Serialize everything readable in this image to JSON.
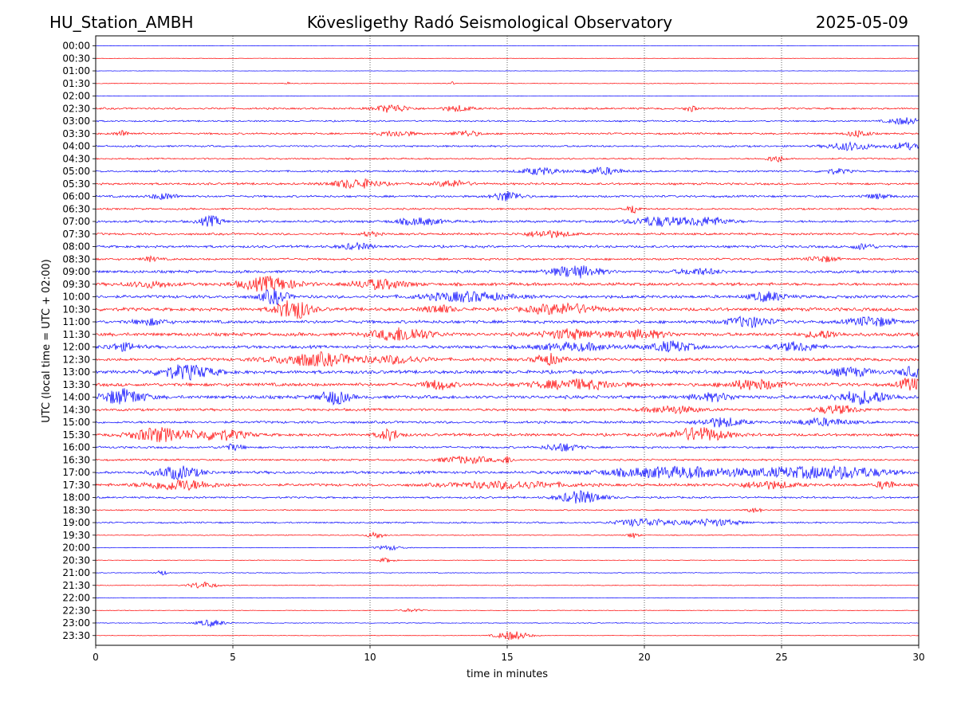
{
  "header": {
    "station": "HU_Station_AMBH",
    "observatory": "Kövesligethy Radó Seismological Observatory",
    "date": "2025-05-09"
  },
  "chart_data": {
    "type": "line",
    "title": "Kövesligethy Radó Seismological Observatory",
    "xlabel": "time in minutes",
    "ylabel": "UTC (local time = UTC + 02:00)",
    "xlim": [
      0,
      30
    ],
    "x_ticks": [
      "0",
      "5",
      "10",
      "15",
      "20",
      "25",
      "30"
    ],
    "vertical_gridlines_at": [
      5,
      10,
      15,
      20,
      25
    ],
    "grid_style": "dotted",
    "row_labels": [
      "00:00",
      "00:30",
      "01:00",
      "01:30",
      "02:00",
      "02:30",
      "03:00",
      "03:30",
      "04:00",
      "04:30",
      "05:00",
      "05:30",
      "06:00",
      "06:30",
      "07:00",
      "07:30",
      "08:00",
      "08:30",
      "09:00",
      "09:30",
      "10:00",
      "10:30",
      "11:00",
      "11:30",
      "12:00",
      "12:30",
      "13:00",
      "13:30",
      "14:00",
      "14:30",
      "15:00",
      "15:30",
      "16:00",
      "16:30",
      "17:00",
      "17:30",
      "18:00",
      "18:30",
      "19:00",
      "19:30",
      "20:00",
      "20:30",
      "21:00",
      "21:30",
      "22:00",
      "22:30",
      "23:00",
      "23:30"
    ],
    "trace_colors": [
      "#0000ff",
      "#ff0000"
    ],
    "trace_amplitude": [
      0.05,
      0.06,
      0.06,
      0.1,
      0.08,
      0.3,
      0.25,
      0.3,
      0.3,
      0.25,
      0.3,
      0.35,
      0.35,
      0.3,
      0.4,
      0.35,
      0.4,
      0.35,
      0.45,
      0.5,
      0.5,
      0.55,
      0.5,
      0.55,
      0.5,
      0.5,
      0.55,
      0.55,
      0.55,
      0.4,
      0.4,
      0.45,
      0.35,
      0.3,
      0.45,
      0.45,
      0.3,
      0.2,
      0.25,
      0.15,
      0.1,
      0.1,
      0.12,
      0.12,
      0.1,
      0.1,
      0.12,
      0.08
    ],
    "bursts": [
      [],
      [],
      [],
      [
        [
          7,
          0.08,
          0.3
        ],
        [
          13,
          0.08,
          0.3
        ]
      ],
      [],
      [
        [
          10.8,
          0.6,
          0.7
        ],
        [
          13.2,
          0.5,
          0.5
        ],
        [
          21.7,
          0.2,
          0.5
        ]
      ],
      [
        [
          29.5,
          0.6,
          0.6
        ]
      ],
      [
        [
          1,
          0.3,
          0.5
        ],
        [
          11,
          0.6,
          0.5
        ],
        [
          13.5,
          0.5,
          0.5
        ],
        [
          27.8,
          0.4,
          0.6
        ]
      ],
      [
        [
          27.5,
          0.8,
          0.7
        ],
        [
          29.5,
          0.5,
          0.6
        ]
      ],
      [
        [
          24.8,
          0.3,
          0.6
        ]
      ],
      [
        [
          16.2,
          0.7,
          0.6
        ],
        [
          18.5,
          0.7,
          0.6
        ],
        [
          27,
          0.5,
          0.4
        ]
      ],
      [
        [
          9.5,
          0.9,
          0.8
        ],
        [
          13,
          0.6,
          0.6
        ]
      ],
      [
        [
          2.5,
          0.5,
          0.5
        ],
        [
          15,
          0.5,
          0.9
        ],
        [
          28.5,
          0.5,
          0.4
        ]
      ],
      [
        [
          19.6,
          0.2,
          0.9
        ]
      ],
      [
        [
          4.2,
          0.4,
          0.9
        ],
        [
          11.8,
          0.8,
          0.6
        ],
        [
          20.5,
          1.0,
          0.8
        ],
        [
          22.3,
          0.8,
          0.7
        ]
      ],
      [
        [
          16.5,
          0.8,
          0.6
        ],
        [
          10,
          0.3,
          0.4
        ]
      ],
      [
        [
          9.5,
          0.6,
          0.5
        ],
        [
          28,
          0.4,
          0.5
        ]
      ],
      [
        [
          2,
          0.3,
          0.4
        ],
        [
          26.5,
          0.5,
          0.5
        ]
      ],
      [
        [
          17.5,
          0.9,
          1.0
        ],
        [
          22,
          0.8,
          0.5
        ]
      ],
      [
        [
          6.3,
          1.0,
          1.2
        ],
        [
          10.3,
          1.0,
          0.8
        ],
        [
          2,
          0.8,
          0.5
        ]
      ],
      [
        [
          6.5,
          0.5,
          1.2
        ],
        [
          13.5,
          1.5,
          0.8
        ],
        [
          24.5,
          0.6,
          0.8
        ]
      ],
      [
        [
          7.2,
          0.6,
          1.8
        ],
        [
          12.5,
          0.5,
          0.7
        ],
        [
          17,
          1.2,
          0.9
        ]
      ],
      [
        [
          23.8,
          0.8,
          0.9
        ],
        [
          28.3,
          0.8,
          0.8
        ],
        [
          2,
          0.6,
          0.5
        ]
      ],
      [
        [
          11.2,
          1.0,
          1.2
        ],
        [
          17.3,
          1.0,
          0.8
        ],
        [
          19.8,
          1.0,
          0.7
        ],
        [
          26.5,
          0.6,
          0.6
        ]
      ],
      [
        [
          1,
          0.6,
          0.6
        ],
        [
          21,
          0.8,
          0.9
        ],
        [
          25.5,
          0.8,
          0.7
        ],
        [
          17.5,
          1.5,
          0.6
        ]
      ],
      [
        [
          8,
          1.5,
          1.1
        ],
        [
          16.5,
          0.5,
          0.9
        ],
        [
          11,
          1.0,
          0.6
        ]
      ],
      [
        [
          3.3,
          1.0,
          1.2
        ],
        [
          27.5,
          0.8,
          0.7
        ],
        [
          29.7,
          0.4,
          0.8
        ]
      ],
      [
        [
          12.5,
          0.5,
          0.8
        ],
        [
          17.5,
          1.5,
          0.8
        ],
        [
          24,
          1.0,
          0.8
        ],
        [
          29.7,
          0.4,
          1.1
        ]
      ],
      [
        [
          1,
          0.8,
          1.3
        ],
        [
          8.7,
          0.5,
          1.2
        ],
        [
          28,
          1.0,
          1.1
        ],
        [
          22.5,
          0.8,
          0.6
        ]
      ],
      [
        [
          27,
          0.8,
          0.7
        ],
        [
          21,
          1.0,
          0.6
        ]
      ],
      [
        [
          22.8,
          0.8,
          0.8
        ],
        [
          26.5,
          1.0,
          0.6
        ]
      ],
      [
        [
          2.3,
          1.0,
          1.2
        ],
        [
          4.5,
          1.0,
          0.9
        ],
        [
          10.7,
          0.4,
          1.0
        ],
        [
          22,
          1.0,
          1.2
        ]
      ],
      [
        [
          17,
          0.6,
          0.7
        ],
        [
          5,
          0.4,
          0.5
        ]
      ],
      [
        [
          13.5,
          1.0,
          0.6
        ],
        [
          15,
          0.2,
          0.6
        ]
      ],
      [
        [
          3,
          0.8,
          1.1
        ],
        [
          21,
          2.5,
          0.9
        ],
        [
          25.5,
          2.0,
          0.7
        ],
        [
          27.5,
          1.5,
          0.7
        ]
      ],
      [
        [
          3,
          1.2,
          0.9
        ],
        [
          15,
          2.0,
          0.6
        ],
        [
          24.5,
          1.0,
          0.6
        ],
        [
          28.8,
          0.3,
          0.8
        ]
      ],
      [
        [
          17.7,
          0.8,
          1.1
        ]
      ],
      [
        [
          24,
          0.3,
          0.4
        ]
      ],
      [
        [
          20,
          1.0,
          0.7
        ],
        [
          22.5,
          1.0,
          0.6
        ]
      ],
      [
        [
          10.2,
          0.3,
          0.6
        ],
        [
          19.6,
          0.2,
          0.5
        ]
      ],
      [
        [
          10.7,
          0.5,
          0.4
        ]
      ],
      [
        [
          10.6,
          0.3,
          0.4
        ]
      ],
      [
        [
          2.4,
          0.2,
          0.5
        ]
      ],
      [
        [
          3.9,
          0.5,
          0.6
        ]
      ],
      [],
      [
        [
          11.5,
          0.4,
          0.3
        ]
      ],
      [
        [
          4.2,
          0.5,
          0.6
        ]
      ],
      [
        [
          15.2,
          0.6,
          0.8
        ]
      ]
    ]
  }
}
